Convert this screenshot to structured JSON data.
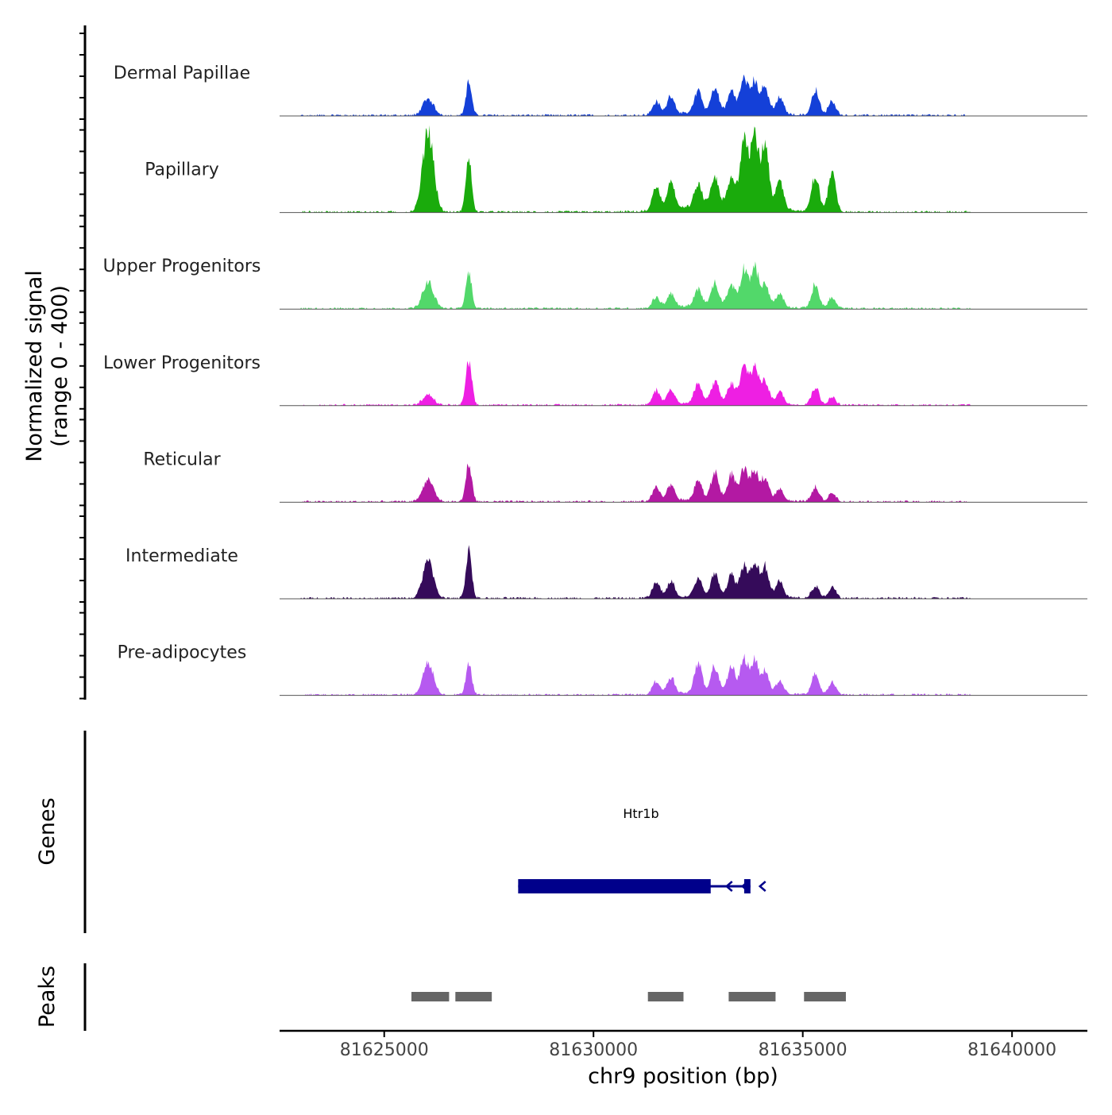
{
  "chart_data": {
    "type": "area",
    "subtype": "genome-coverage-track",
    "title": "",
    "ylabel": "Normalized signal",
    "ylabel_sub": "(range 0 - 400)",
    "ylim": [
      0,
      400
    ],
    "xlabel": "chr9 position (bp)",
    "xlim": [
      81622500,
      81641800
    ],
    "x_ticks": [
      81625000,
      81630000,
      81635000,
      81640000
    ],
    "x_tick_labels": [
      "81625000",
      "81630000",
      "81635000",
      "81640000"
    ],
    "peak_centers": [
      81626050,
      81627020,
      81631500,
      81631850,
      81632500,
      81632900,
      81633300,
      81633600,
      81633850,
      81634100,
      81634450,
      81635300,
      81635700
    ],
    "series": [
      {
        "name": "Dermal Papillae",
        "color": "#1440d8",
        "peak_heights": [
          75,
          150,
          60,
          85,
          100,
          110,
          95,
          155,
          140,
          115,
          75,
          115,
          65
        ]
      },
      {
        "name": "Papillary",
        "color": "#1aab0c",
        "peak_heights": [
          370,
          240,
          110,
          130,
          100,
          120,
          115,
          335,
          325,
          270,
          130,
          165,
          175
        ]
      },
      {
        "name": "Upper Progenitors",
        "color": "#52d86a",
        "peak_heights": [
          120,
          170,
          50,
          65,
          75,
          95,
          90,
          165,
          170,
          100,
          60,
          110,
          50
        ]
      },
      {
        "name": "Lower Progenitors",
        "color": "#ee1fe3",
        "peak_heights": [
          45,
          205,
          65,
          70,
          85,
          90,
          80,
          160,
          165,
          100,
          55,
          80,
          35
        ]
      },
      {
        "name": "Reticular",
        "color": "#b319a3",
        "peak_heights": [
          100,
          180,
          65,
          75,
          85,
          120,
          110,
          135,
          125,
          105,
          55,
          65,
          40
        ]
      },
      {
        "name": "Intermediate",
        "color": "#350b5a",
        "peak_heights": [
          170,
          220,
          70,
          75,
          80,
          100,
          95,
          140,
          155,
          135,
          70,
          55,
          50
        ]
      },
      {
        "name": "Pre-adipocytes",
        "color": "#b65af0",
        "peak_heights": [
          140,
          140,
          60,
          75,
          130,
          115,
          110,
          150,
          145,
          100,
          55,
          90,
          55
        ]
      }
    ],
    "genes_track": {
      "label": "Genes",
      "gene_name": "Htr1b",
      "color": "#00008b",
      "thick_start": 81628200,
      "thick_end": 81632800,
      "line_end": 81633700,
      "exon_start": 81633600,
      "exon_end": 81633750,
      "strand": "-"
    },
    "peaks_track": {
      "label": "Peaks",
      "color": "#666666",
      "ranges": [
        [
          81625650,
          81626550
        ],
        [
          81626700,
          81627570
        ],
        [
          81631300,
          81632150
        ],
        [
          81633230,
          81634350
        ],
        [
          81635030,
          81636030
        ]
      ]
    }
  }
}
